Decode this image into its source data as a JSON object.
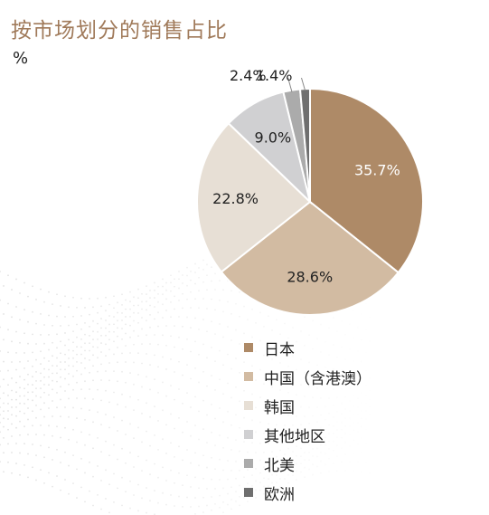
{
  "title": "按市场划分的销售占比",
  "unit": "%",
  "chart_data": {
    "type": "pie",
    "title": "按市场划分的销售占比",
    "unit": "%",
    "slices": [
      {
        "label": "日本",
        "value": 35.7,
        "value_label": "35.7%",
        "color": "#ae8a67"
      },
      {
        "label": "中国（含港澳）",
        "value": 28.6,
        "value_label": "28.6%",
        "color": "#d2bba2"
      },
      {
        "label": "韩国",
        "value": 22.8,
        "value_label": "22.8%",
        "color": "#e7dfd5"
      },
      {
        "label": "其他地区",
        "value": 9.0,
        "value_label": "9.0%",
        "color": "#d0d0d2"
      },
      {
        "label": "北美",
        "value": 2.4,
        "value_label": "2.4%",
        "color": "#ababab"
      },
      {
        "label": "欧洲",
        "value": 1.4,
        "value_label": "1.4%",
        "color": "#6f6f6f"
      }
    ],
    "legend_position": "bottom"
  }
}
